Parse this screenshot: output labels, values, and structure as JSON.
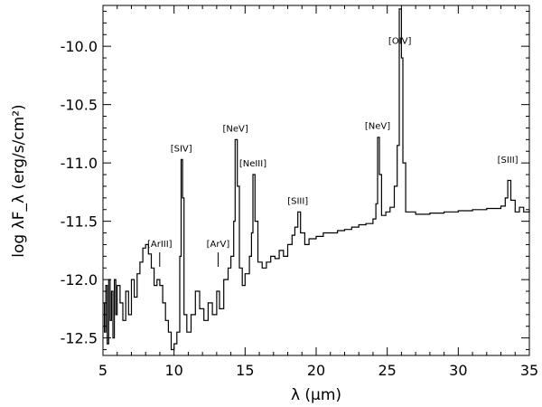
{
  "chart_data": {
    "type": "line",
    "title": "",
    "xlabel": "λ (μm)",
    "ylabel": "log λF_λ (erg/s/cm²)",
    "xlim": [
      5,
      35
    ],
    "ylim": [
      -12.65,
      -9.65
    ],
    "x_ticks": [
      5,
      10,
      15,
      20,
      25,
      30,
      35
    ],
    "x_tick_labels": [
      "5",
      "10",
      "15",
      "20",
      "25",
      "30",
      "35"
    ],
    "y_ticks": [
      -12.5,
      -12.0,
      -11.5,
      -11.0,
      -10.5,
      -10.0
    ],
    "y_tick_labels": [
      "-12.5",
      "-12.0",
      "-11.5",
      "-11.0",
      "-10.5",
      "-10.0"
    ],
    "grid": false,
    "series": [
      {
        "color": "#000000",
        "points": [
          [
            5.0,
            -12.2
          ],
          [
            5.1,
            -12.45
          ],
          [
            5.2,
            -12.05
          ],
          [
            5.3,
            -12.55
          ],
          [
            5.4,
            -12.0
          ],
          [
            5.5,
            -12.35
          ],
          [
            5.6,
            -12.1
          ],
          [
            5.7,
            -12.5
          ],
          [
            5.8,
            -12.0
          ],
          [
            5.9,
            -12.3
          ],
          [
            6.0,
            -12.05
          ],
          [
            6.2,
            -12.2
          ],
          [
            6.4,
            -12.35
          ],
          [
            6.6,
            -12.1
          ],
          [
            6.8,
            -12.3
          ],
          [
            7.0,
            -12.0
          ],
          [
            7.2,
            -12.15
          ],
          [
            7.4,
            -11.95
          ],
          [
            7.6,
            -11.85
          ],
          [
            7.8,
            -11.73
          ],
          [
            8.0,
            -11.7
          ],
          [
            8.2,
            -11.78
          ],
          [
            8.4,
            -11.9
          ],
          [
            8.6,
            -12.05
          ],
          [
            8.8,
            -12.0
          ],
          [
            9.0,
            -12.05
          ],
          [
            9.2,
            -12.2
          ],
          [
            9.4,
            -12.35
          ],
          [
            9.6,
            -12.45
          ],
          [
            9.8,
            -12.6
          ],
          [
            10.0,
            -12.55
          ],
          [
            10.2,
            -12.45
          ],
          [
            10.4,
            -11.8
          ],
          [
            10.5,
            -10.97
          ],
          [
            10.6,
            -11.3
          ],
          [
            10.7,
            -12.3
          ],
          [
            10.9,
            -12.45
          ],
          [
            11.2,
            -12.3
          ],
          [
            11.5,
            -12.1
          ],
          [
            11.8,
            -12.25
          ],
          [
            12.1,
            -12.35
          ],
          [
            12.4,
            -12.2
          ],
          [
            12.7,
            -12.3
          ],
          [
            13.0,
            -12.1
          ],
          [
            13.2,
            -12.25
          ],
          [
            13.5,
            -12.0
          ],
          [
            13.8,
            -11.9
          ],
          [
            14.0,
            -11.8
          ],
          [
            14.2,
            -11.5
          ],
          [
            14.3,
            -10.8
          ],
          [
            14.45,
            -11.2
          ],
          [
            14.6,
            -11.9
          ],
          [
            14.8,
            -12.05
          ],
          [
            15.0,
            -11.95
          ],
          [
            15.3,
            -11.8
          ],
          [
            15.45,
            -11.6
          ],
          [
            15.55,
            -11.1
          ],
          [
            15.7,
            -11.5
          ],
          [
            15.9,
            -11.85
          ],
          [
            16.2,
            -11.9
          ],
          [
            16.5,
            -11.85
          ],
          [
            16.8,
            -11.8
          ],
          [
            17.1,
            -11.82
          ],
          [
            17.4,
            -11.75
          ],
          [
            17.7,
            -11.8
          ],
          [
            18.0,
            -11.7
          ],
          [
            18.3,
            -11.62
          ],
          [
            18.5,
            -11.55
          ],
          [
            18.71,
            -11.42
          ],
          [
            18.9,
            -11.6
          ],
          [
            19.2,
            -11.7
          ],
          [
            19.5,
            -11.65
          ],
          [
            20.0,
            -11.63
          ],
          [
            20.5,
            -11.6
          ],
          [
            21.0,
            -11.6
          ],
          [
            21.5,
            -11.58
          ],
          [
            22.0,
            -11.57
          ],
          [
            22.5,
            -11.55
          ],
          [
            23.0,
            -11.53
          ],
          [
            23.5,
            -11.52
          ],
          [
            24.0,
            -11.48
          ],
          [
            24.2,
            -11.35
          ],
          [
            24.32,
            -10.78
          ],
          [
            24.45,
            -11.1
          ],
          [
            24.6,
            -11.45
          ],
          [
            24.9,
            -11.42
          ],
          [
            25.2,
            -11.38
          ],
          [
            25.5,
            -11.2
          ],
          [
            25.7,
            -10.85
          ],
          [
            25.85,
            -9.68
          ],
          [
            26.0,
            -10.1
          ],
          [
            26.1,
            -11.0
          ],
          [
            26.3,
            -11.42
          ],
          [
            27.0,
            -11.44
          ],
          [
            28.0,
            -11.43
          ],
          [
            29.0,
            -11.42
          ],
          [
            30.0,
            -11.41
          ],
          [
            31.0,
            -11.4
          ],
          [
            32.0,
            -11.39
          ],
          [
            33.0,
            -11.37
          ],
          [
            33.3,
            -11.3
          ],
          [
            33.48,
            -11.15
          ],
          [
            33.7,
            -11.32
          ],
          [
            34.0,
            -11.42
          ],
          [
            34.3,
            -11.38
          ],
          [
            34.6,
            -11.42
          ],
          [
            35.0,
            -11.4
          ]
        ]
      }
    ],
    "annotations": [
      {
        "text": "[ArIII]",
        "x": 8.99,
        "y": -11.72,
        "tick": true
      },
      {
        "text": "[SIV]",
        "x": 10.51,
        "y": -10.9,
        "tick": false
      },
      {
        "text": "[ArV]",
        "x": 13.1,
        "y": -11.72,
        "tick": true
      },
      {
        "text": "[NeV]",
        "x": 14.32,
        "y": -10.73,
        "tick": false
      },
      {
        "text": "[NeIII]",
        "x": 15.55,
        "y": -11.03,
        "tick": false
      },
      {
        "text": "[SIII]",
        "x": 18.71,
        "y": -11.35,
        "tick": false
      },
      {
        "text": "[NeV]",
        "x": 24.32,
        "y": -10.71,
        "tick": false
      },
      {
        "text": "[OIV]",
        "x": 25.89,
        "y": -9.98,
        "tick": false
      },
      {
        "text": "[SIII]",
        "x": 33.48,
        "y": -11.0,
        "tick": false
      }
    ]
  }
}
